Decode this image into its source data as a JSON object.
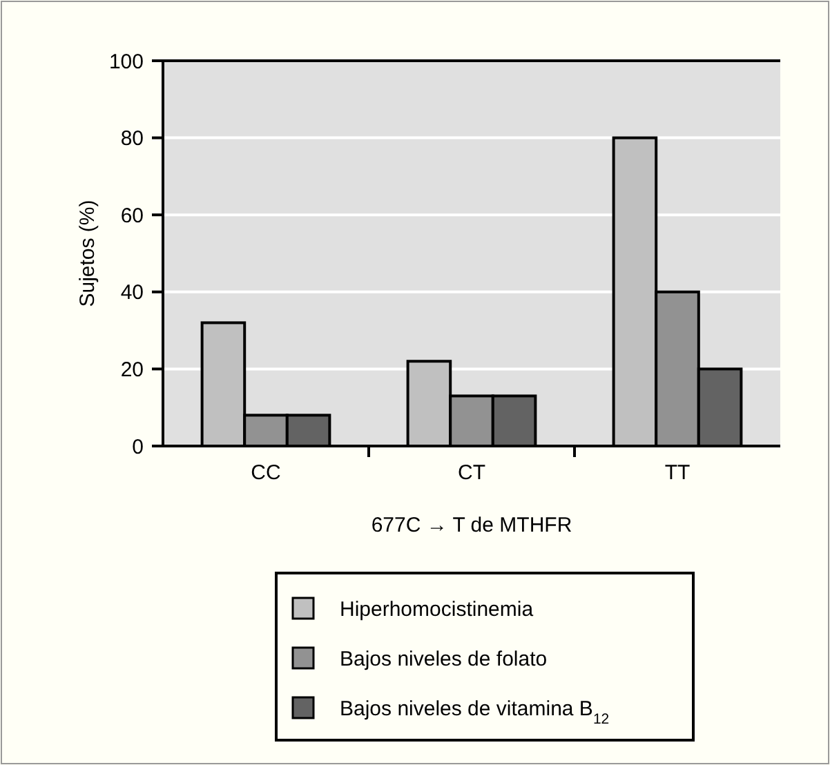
{
  "chart_data": {
    "type": "bar",
    "xlabel": "677C → T de MTHFR",
    "ylabel": "Sujetos (%)",
    "categories": [
      "CC",
      "CT",
      "TT"
    ],
    "series": [
      {
        "name": "Hiperhomocistinemia",
        "color": "#c0c0c0",
        "values": [
          32,
          22,
          80
        ]
      },
      {
        "name": "Bajos niveles de folato",
        "color": "#929292",
        "values": [
          8,
          13,
          40
        ]
      },
      {
        "name": "Bajos niveles de vitamina B$_{12}$",
        "color": "#636363",
        "values": [
          8,
          13,
          20
        ]
      }
    ],
    "ylim": [
      0,
      100
    ],
    "yticks": [
      0,
      20,
      40,
      60,
      80,
      100
    ],
    "grid": "y",
    "legend": "bottom"
  }
}
